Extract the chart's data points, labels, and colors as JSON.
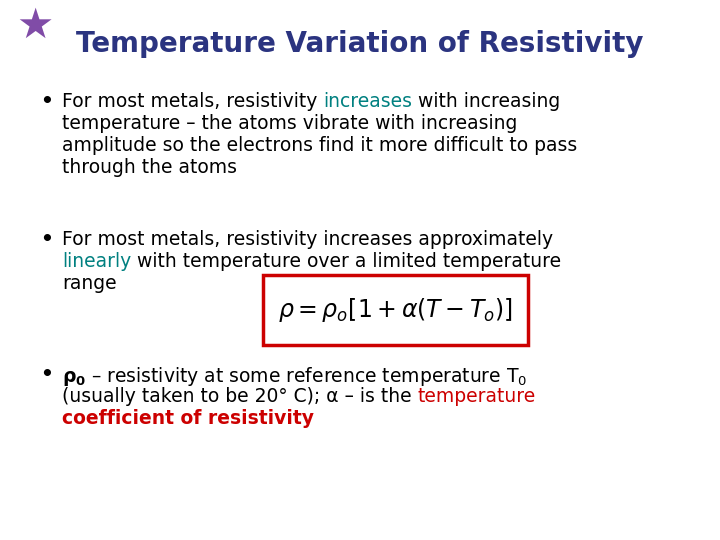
{
  "title": "Temperature Variation of Resistivity",
  "title_color": "#2B3480",
  "title_fontsize": 20,
  "bg_color": "#FFFFFF",
  "teal_color": "#008080",
  "red_color": "#CC0000",
  "bullet_fontsize": 13.5,
  "figsize": [
    7.2,
    5.4
  ],
  "dpi": 100,
  "b1_line1_pre": "For most metals, resistivity ",
  "b1_line1_colored": "increases",
  "b1_line1_post": " with increasing",
  "b1_line2": "temperature – the atoms vibrate with increasing",
  "b1_line3": "amplitude so the electrons find it more difficult to pass",
  "b1_line4": "through the atoms",
  "b2_line1": "For most metals, resistivity increases approximately",
  "b2_line2_colored": "linearly",
  "b2_line2_post": " with temperature over a limited temperature",
  "b2_line3": "range",
  "formula": "$\\rho = \\rho_o[1 + \\alpha(T - T_o)]$",
  "b3_line1_pre": "ρ",
  "b3_line1_sub": "0",
  "b3_line1_post": " – resistivity at some reference temperature T",
  "b3_line1_sub2": "0",
  "b3_line2_pre": "(usually taken to be 20° C); α – is the ",
  "b3_line2_colored": "temperature",
  "b3_line3": "coefficient of resistivity"
}
